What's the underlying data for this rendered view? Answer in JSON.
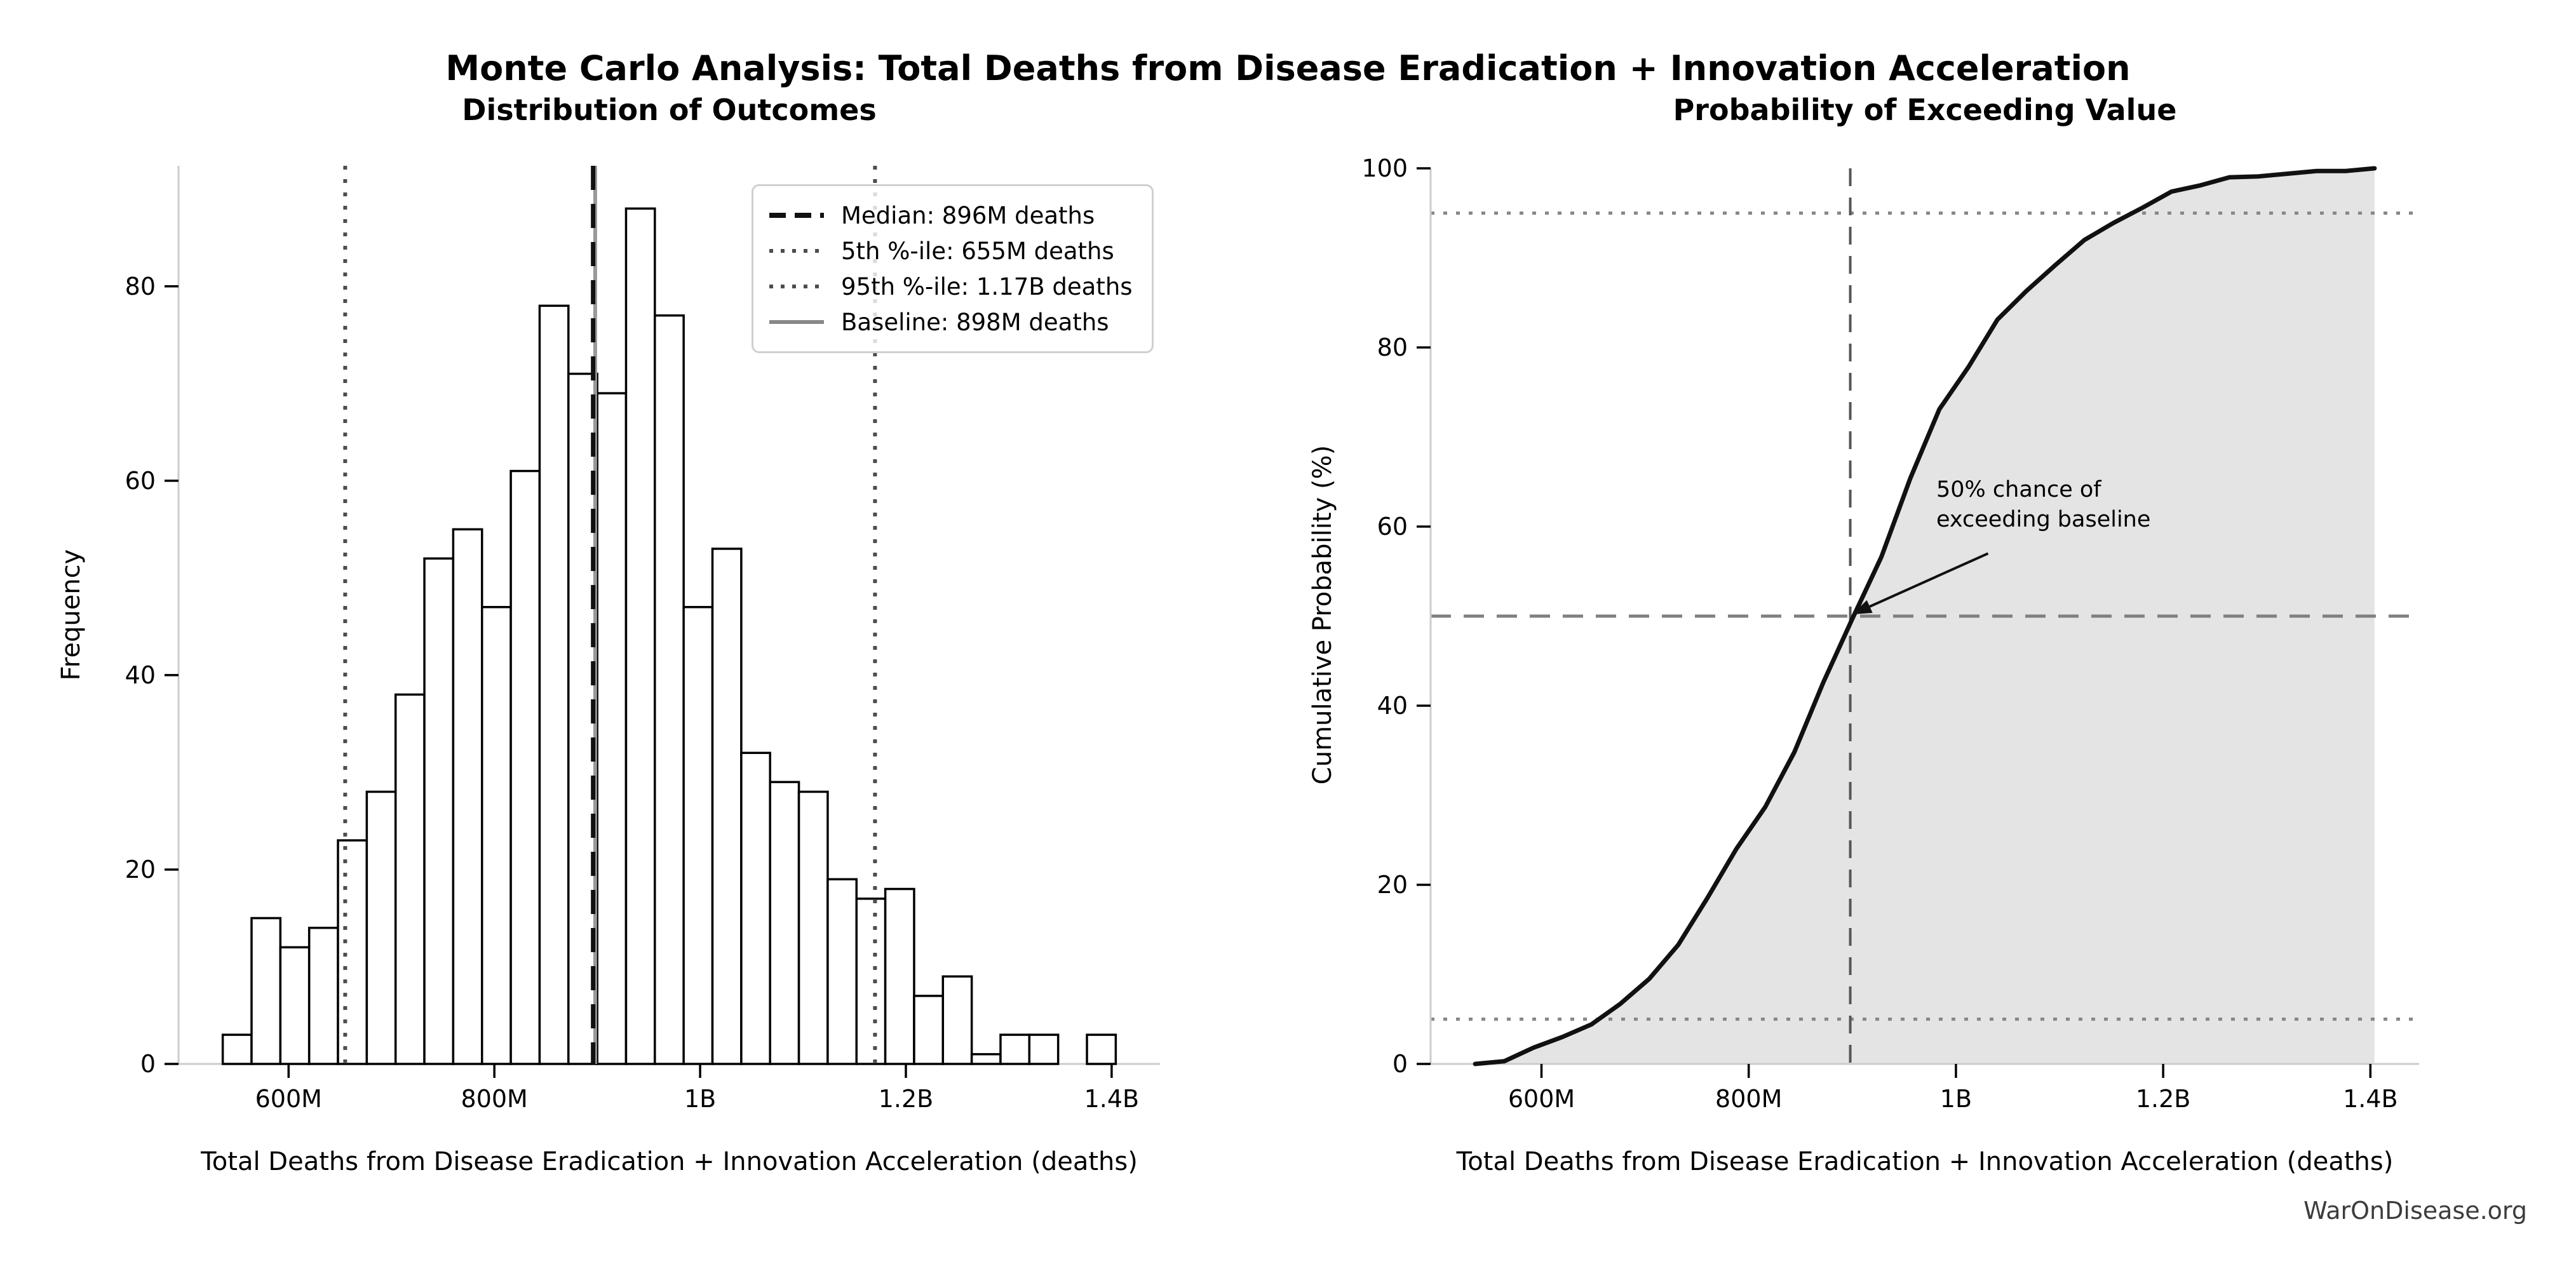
{
  "figure": {
    "suptitle": "Monte Carlo Analysis: Total Deaths from Disease Eradication + Innovation Acceleration",
    "watermark": "WarOnDisease.org"
  },
  "colors": {
    "spine": "#cccccc",
    "tick": "#000000",
    "bar_fill": "#ffffff",
    "bar_edge": "#000000",
    "median_line": "#111111",
    "percentile_line": "#4d4d4d",
    "baseline_line": "#999999",
    "cdf_line": "#111111",
    "cdf_fill": "#e4e4e4",
    "dotted_ref": "#888888",
    "dashed_ref": "#808080",
    "vline_ref": "#555555",
    "watermark": "#3c3c3c"
  },
  "legend": {
    "entries": [
      {
        "label": "Median: 896M deaths",
        "style": "dashed-bold-black"
      },
      {
        "label": "5th %-ile: 655M deaths",
        "style": "dotted-dark"
      },
      {
        "label": "95th %-ile: 1.17B deaths",
        "style": "dotted-dark"
      },
      {
        "label": "Baseline: 898M deaths",
        "style": "solid-gray"
      }
    ]
  },
  "chart_data": [
    {
      "id": "outcomes_histogram",
      "type": "bar",
      "title": "Distribution of Outcomes",
      "xlabel": "Total Deaths from Disease Eradication + Innovation Acceleration (deaths)",
      "ylabel": "Frequency",
      "x_unit": "millions of deaths",
      "bin_start": 536,
      "bin_width": 28,
      "counts": [
        3,
        15,
        12,
        14,
        23,
        28,
        38,
        52,
        55,
        47,
        61,
        78,
        71,
        69,
        88,
        77,
        47,
        53,
        32,
        29,
        28,
        19,
        17,
        18,
        7,
        9,
        1,
        3,
        3,
        0,
        3
      ],
      "xlim": [
        493,
        1447
      ],
      "ylim": [
        0,
        92.4
      ],
      "xticks": [
        {
          "v": 600,
          "label": "600M"
        },
        {
          "v": 800,
          "label": "800M"
        },
        {
          "v": 1000,
          "label": "1B"
        },
        {
          "v": 1200,
          "label": "1.2B"
        },
        {
          "v": 1400,
          "label": "1.4B"
        }
      ],
      "yticks": [
        {
          "v": 0,
          "label": "0"
        },
        {
          "v": 20,
          "label": "20"
        },
        {
          "v": 40,
          "label": "40"
        },
        {
          "v": 60,
          "label": "60"
        },
        {
          "v": 80,
          "label": "80"
        }
      ],
      "ref_lines": [
        {
          "name": "baseline",
          "x": 898,
          "style": "solid-gray"
        },
        {
          "name": "p95",
          "x": 1170,
          "style": "dotted-dark"
        },
        {
          "name": "p5",
          "x": 655,
          "style": "dotted-dark"
        },
        {
          "name": "median",
          "x": 896,
          "style": "dashed-bold-black"
        }
      ]
    },
    {
      "id": "exceedance_cdf",
      "type": "line",
      "title": "Probability of Exceeding Value",
      "xlabel": "Total Deaths from Disease Eradication + Innovation Acceleration (deaths)",
      "ylabel": "Cumulative Probability (%)",
      "x_unit": "millions of deaths",
      "x": [
        536,
        564,
        592,
        620,
        648,
        676,
        704,
        732,
        760,
        788,
        816,
        844,
        872,
        900,
        928,
        956,
        984,
        1012,
        1040,
        1068,
        1096,
        1124,
        1152,
        1180,
        1208,
        1236,
        1264,
        1292,
        1320,
        1348,
        1376,
        1404
      ],
      "y": [
        0,
        0.3,
        1.8,
        3.0,
        4.4,
        6.7,
        9.5,
        13.3,
        18.5,
        24.0,
        28.7,
        34.8,
        42.6,
        49.7,
        56.6,
        65.4,
        73.1,
        77.8,
        83.1,
        86.3,
        89.2,
        92.0,
        93.9,
        95.6,
        97.4,
        98.1,
        99.0,
        99.1,
        99.4,
        99.7,
        99.7,
        100
      ],
      "xlim": [
        493,
        1447
      ],
      "ylim": [
        0,
        100
      ],
      "xticks": [
        {
          "v": 600,
          "label": "600M"
        },
        {
          "v": 800,
          "label": "800M"
        },
        {
          "v": 1000,
          "label": "1B"
        },
        {
          "v": 1200,
          "label": "1.2B"
        },
        {
          "v": 1400,
          "label": "1.4B"
        }
      ],
      "yticks": [
        {
          "v": 0,
          "label": "0"
        },
        {
          "v": 20,
          "label": "20"
        },
        {
          "v": 40,
          "label": "40"
        },
        {
          "v": 60,
          "label": "60"
        },
        {
          "v": 80,
          "label": "80"
        },
        {
          "v": 100,
          "label": "100"
        }
      ],
      "hlines": [
        {
          "y": 5,
          "style": "dotted-gray"
        },
        {
          "y": 50,
          "style": "dashed-gray"
        },
        {
          "y": 95,
          "style": "dotted-gray"
        }
      ],
      "vlines": [
        {
          "name": "baseline",
          "x": 898,
          "style": "dashed-darkgray"
        }
      ],
      "fill_under_curve": true,
      "annotation": {
        "text": "50% chance of\nexceeding baseline",
        "target": [
          900,
          50.2
        ],
        "arrow_start": [
          1031,
          57
        ]
      }
    }
  ]
}
